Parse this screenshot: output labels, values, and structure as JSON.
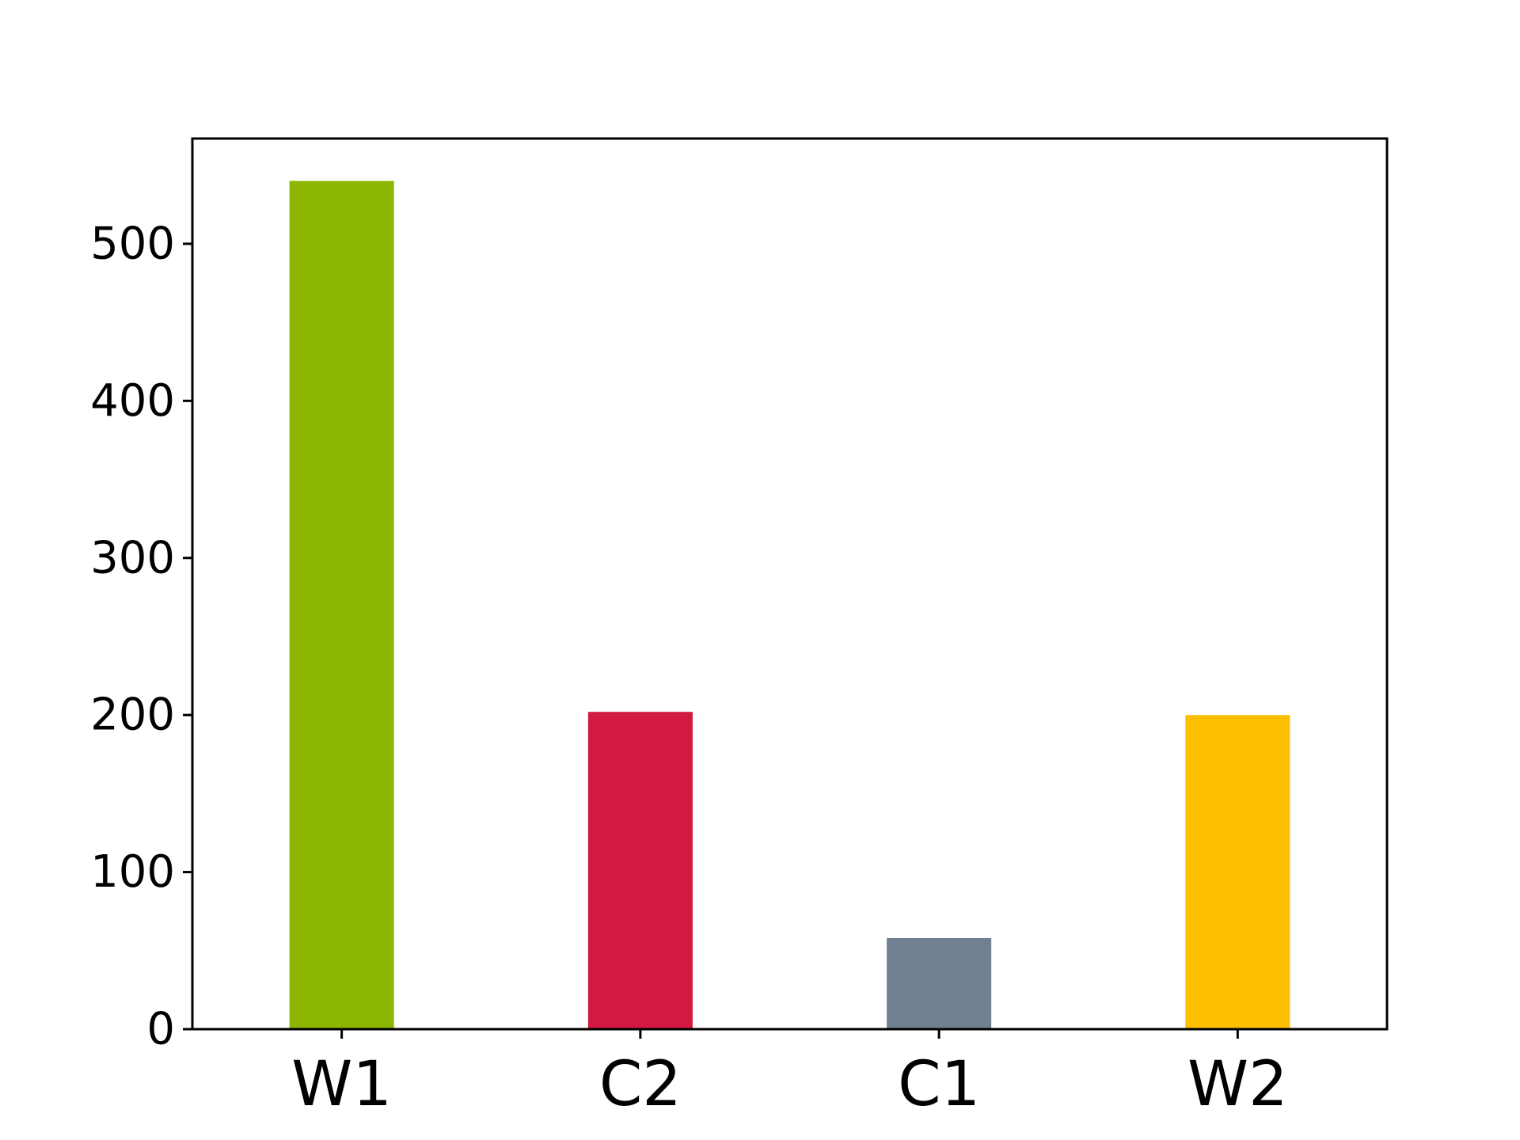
{
  "chart_data": {
    "type": "bar",
    "title": "",
    "xlabel": "",
    "ylabel": "",
    "categories": [
      "W1",
      "C2",
      "C1",
      "W2"
    ],
    "values": [
      540,
      202,
      58,
      200
    ],
    "colors": [
      "#8db600",
      "#d11942",
      "#708090",
      "#fdbf00"
    ],
    "ylim": [
      0,
      567
    ],
    "yticks": [
      0,
      100,
      200,
      300,
      400,
      500
    ],
    "ytick_labels": [
      "0",
      "100",
      "200",
      "300",
      "400",
      "500"
    ],
    "grid": false,
    "legend": "none"
  }
}
